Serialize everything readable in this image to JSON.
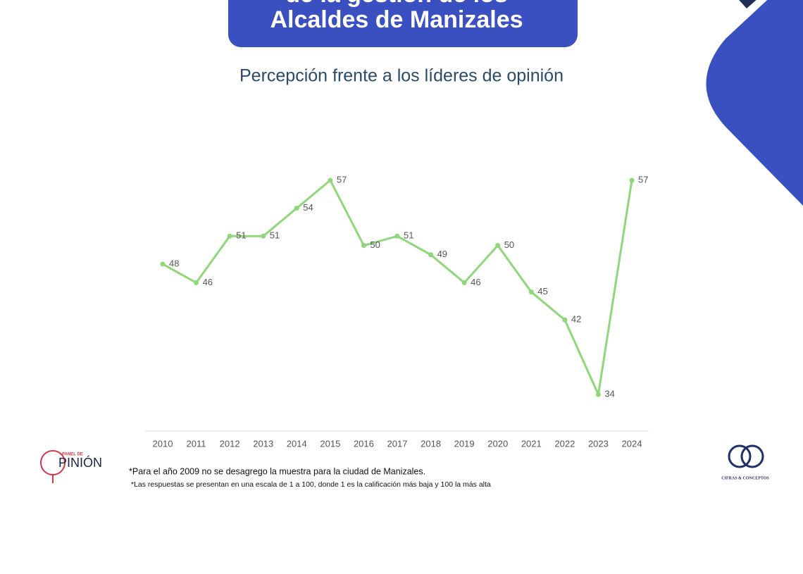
{
  "header": {
    "title_lines": [
      "de la gestión de los",
      "Alcaldes de Manizales"
    ]
  },
  "chart_data": {
    "type": "line",
    "subtitle": "Percepción frente a los líderes de opinión",
    "categories": [
      "2010",
      "2011",
      "2012",
      "2013",
      "2014",
      "2015",
      "2016",
      "2017",
      "2018",
      "2019",
      "2020",
      "2021",
      "2022",
      "2023",
      "2024"
    ],
    "values": [
      48,
      46,
      51,
      51,
      54,
      57,
      50,
      51,
      49,
      46,
      50,
      45,
      42,
      34,
      57
    ],
    "color": "#8fd77a"
  },
  "footnotes": [
    "*Para el año 2009 no se desagrego la muestra para la ciudad de Manizales.",
    "*Las respuestas se presentan en una escala de 1 a 100, donde 1 es la calificación más baja y 100 la más alta"
  ],
  "logos": {
    "left": {
      "small": "PANEL DE",
      "big": "PINIÓN"
    },
    "right": {
      "name": "CIFRAS & CONCEPTOS"
    }
  }
}
